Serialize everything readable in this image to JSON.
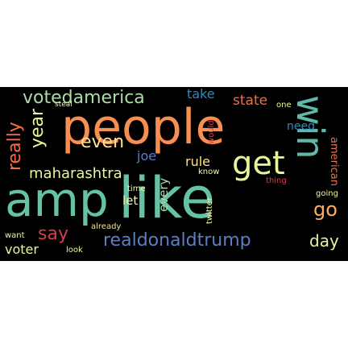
{
  "colors": {
    "background": "#000000",
    "page": "#ffffff"
  },
  "words": {
    "people": "people",
    "amp": "amp",
    "like": "like",
    "win": "win",
    "get": "get",
    "votedamerica": "votedamerica",
    "realdonaldtrump": "realdonaldtrump",
    "even": "even",
    "say": "say",
    "year": "year",
    "really": "really",
    "maharashtra": "maharashtra",
    "day": "day",
    "go": "go",
    "voter": "voter",
    "state": "state",
    "take": "take",
    "need": "need",
    "american": "american",
    "rule": "rule",
    "joe": "joe",
    "every": "every",
    "let": "let",
    "time": "time",
    "know": "know",
    "thing": "thing",
    "twitter": "twitter",
    "would": "would",
    "one": "one",
    "steal": "steal",
    "already": "already",
    "going": "going",
    "want": "want",
    "look": "look"
  }
}
